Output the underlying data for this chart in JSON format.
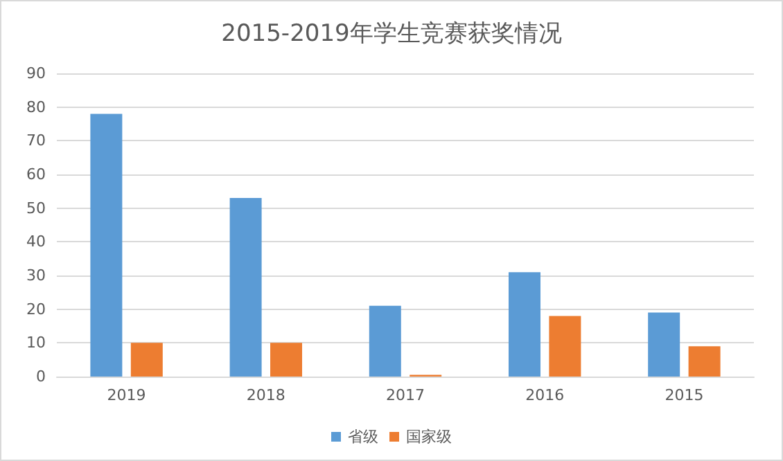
{
  "chart_data": {
    "type": "bar",
    "title": "2015-2019年学生竞赛获奖情况",
    "categories": [
      "2019",
      "2018",
      "2017",
      "2016",
      "2015"
    ],
    "series": [
      {
        "name": "省级",
        "color": "#5b9bd5",
        "values": [
          78,
          53,
          21,
          31,
          19
        ]
      },
      {
        "name": "国家级",
        "color": "#ed7d31",
        "values": [
          10,
          10,
          0.5,
          18,
          9
        ]
      }
    ],
    "ylim": [
      0,
      90
    ],
    "yticks": [
      0,
      10,
      20,
      30,
      40,
      50,
      60,
      70,
      80,
      90
    ],
    "grid": "y",
    "legend": "bottom"
  }
}
